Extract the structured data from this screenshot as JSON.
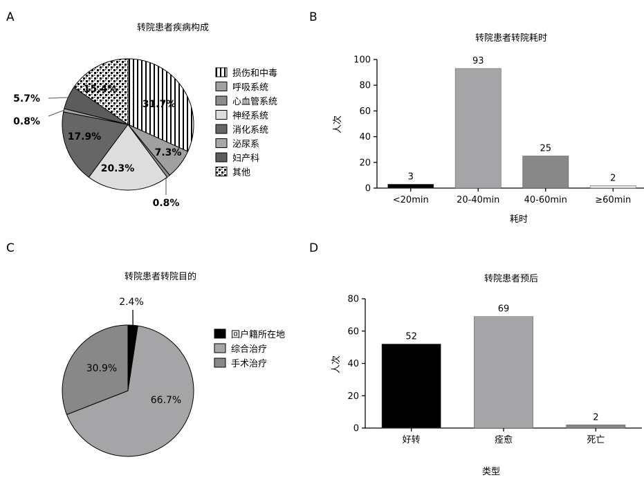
{
  "colors": {
    "black": "#000000",
    "light_gray": "#e2e2e2",
    "mid_gray": "#a5a5a7",
    "gray": "#888888",
    "dark_gray": "#6a6a6a",
    "darker_gray": "#555555",
    "pale_bar": "#e6e6e6",
    "pattern_stripes": "vertical-stripes",
    "pattern_checker": "checker"
  },
  "chart_data": [
    {
      "panel": "A",
      "type": "pie",
      "title": "转院患者疾病构成",
      "slices": [
        {
          "name": "损伤和中毒",
          "value": 31.7,
          "label": "31.7%",
          "color": "stripes"
        },
        {
          "name": "呼吸系统",
          "value": 7.3,
          "label": "7.3%",
          "color": "#a0a0a0"
        },
        {
          "name": "心血管系统",
          "value": 0.8,
          "label": "0.8%",
          "color": "#8c8c8c"
        },
        {
          "name": "神经系统",
          "value": 20.3,
          "label": "20.3%",
          "color": "#dddddd"
        },
        {
          "name": "消化系统",
          "value": 17.9,
          "label": "17.9%",
          "color": "#666666"
        },
        {
          "name": "泌尿系",
          "value": 0.8,
          "label": "0.8%",
          "color": "#a8a8a8"
        },
        {
          "name": "妇产科",
          "value": 5.7,
          "label": "5.7%",
          "color": "#5c5c5c"
        },
        {
          "name": "其他",
          "value": 15.4,
          "label": "15.4%",
          "color": "checker"
        }
      ],
      "legend": [
        "损伤和中毒",
        "呼吸系统",
        "心血管系统",
        "神经系统",
        "消化系统",
        "泌尿系",
        "妇产科",
        "其他"
      ],
      "legend_position": "right"
    },
    {
      "panel": "B",
      "type": "bar",
      "title": "转院患者转院耗时",
      "categories": [
        "<20min",
        "20-40min",
        "40-60min",
        "≥60min"
      ],
      "values": [
        3,
        93,
        25,
        2
      ],
      "bar_colors": [
        "#000000",
        "#a5a5a8",
        "#888888",
        "#e6e6e6"
      ],
      "xlabel": "耗时",
      "ylabel": "人次",
      "ylim": [
        0,
        100
      ],
      "yticks": [
        0,
        20,
        40,
        60,
        80,
        100
      ]
    },
    {
      "panel": "C",
      "type": "pie",
      "title": "转院患者转院目的",
      "slices": [
        {
          "name": "回户籍所在地",
          "value": 2.4,
          "label": "2.4%",
          "color": "#000000"
        },
        {
          "name": "综合治疗",
          "value": 66.7,
          "label": "66.7%",
          "color": "#a5a5a8"
        },
        {
          "name": "手术治疗",
          "value": 30.9,
          "label": "30.9%",
          "color": "#888888"
        }
      ],
      "legend": [
        "回户籍所在地",
        "综合治疗",
        "手术治疗"
      ],
      "legend_position": "right"
    },
    {
      "panel": "D",
      "type": "bar",
      "title": "转院患者预后",
      "categories": [
        "好转",
        "痊愈",
        "死亡"
      ],
      "values": [
        52,
        69,
        2
      ],
      "bar_colors": [
        "#000000",
        "#a5a5a8",
        "#888888"
      ],
      "xlabel": "类型",
      "ylabel": "人次",
      "ylim": [
        0,
        80
      ],
      "yticks": [
        0,
        20,
        40,
        60,
        80
      ]
    }
  ]
}
